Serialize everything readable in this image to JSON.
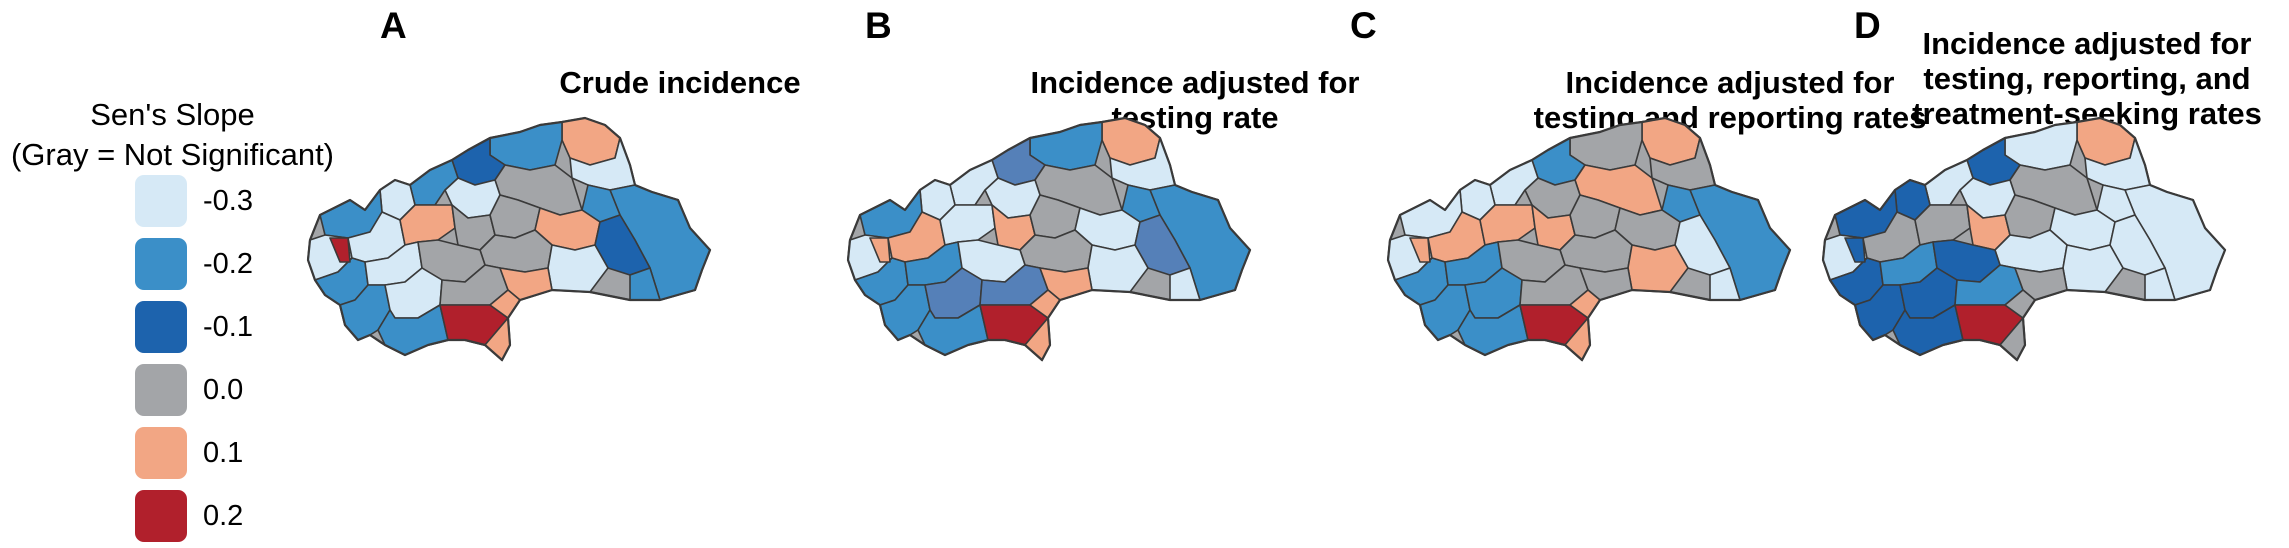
{
  "legend": {
    "title_line1": "Sen's Slope",
    "title_line2": "(Gray = Not Significant)",
    "items": [
      {
        "label": "-0.3",
        "color": "#d6e9f6"
      },
      {
        "label": "-0.2",
        "color": "#3b8fc8"
      },
      {
        "label": "-0.1",
        "color": "#1d63ad"
      },
      {
        "label": "0.0",
        "color": "#a3a5a8"
      },
      {
        "label": "0.1",
        "color": "#f2a684"
      },
      {
        "label": "0.2",
        "color": "#b1202c"
      }
    ]
  },
  "panels": [
    {
      "letter": "A",
      "title_lines": [
        "Crude incidence"
      ]
    },
    {
      "letter": "B",
      "title_lines": [
        "Incidence adjusted for",
        "testing rate"
      ]
    },
    {
      "letter": "C",
      "title_lines": [
        "Incidence adjusted for",
        "testing and reporting rates"
      ]
    },
    {
      "letter": "D",
      "title_lines": [
        "Incidence adjusted for",
        "testing, reporting, and",
        "treatment-seeking rates"
      ]
    }
  ],
  "colors": {
    "border": "#3a3a3a",
    "gray": "#a3a5a8",
    "alt_blue": "#5580b8"
  }
}
